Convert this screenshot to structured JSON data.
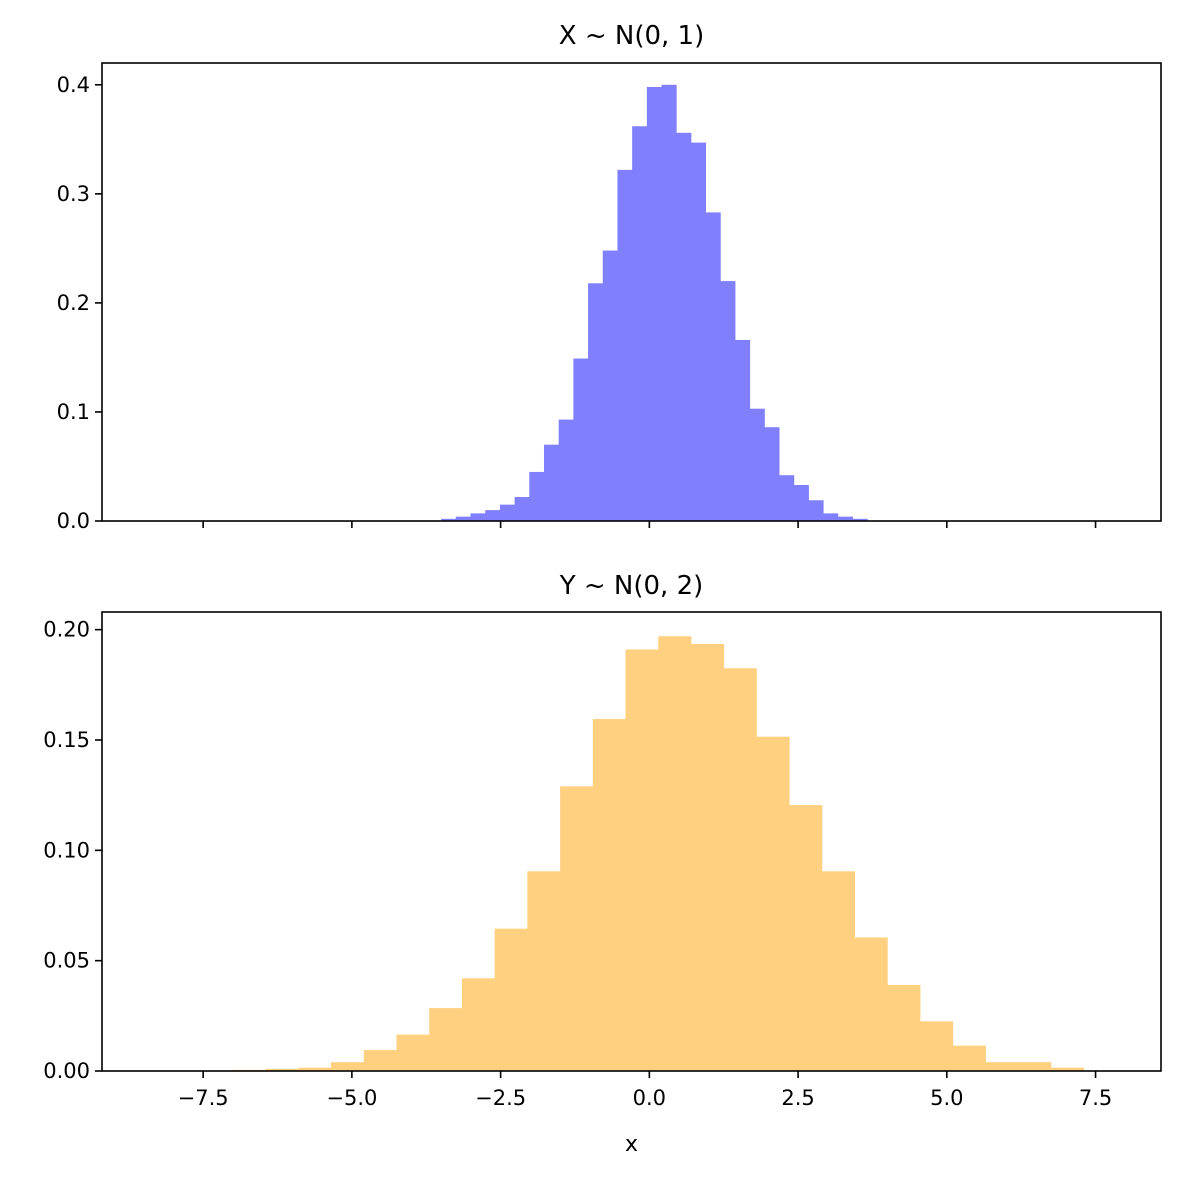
{
  "chart_data": [
    {
      "type": "bar",
      "title": "X ~ N(0, 1)",
      "xlabel": "",
      "ylabel": "",
      "color": "#8080ff",
      "xlim": [
        -9.2,
        8.6
      ],
      "ylim": [
        0,
        0.42
      ],
      "yticks": [
        0.0,
        0.1,
        0.2,
        0.3,
        0.4
      ],
      "ytick_labels": [
        "0.0",
        "0.1",
        "0.2",
        "0.3",
        "0.4"
      ],
      "xticks": [
        -7.5,
        -5.0,
        -2.5,
        0.0,
        2.5,
        5.0,
        7.5
      ],
      "xtick_labels": [],
      "bin_start": -3.5,
      "bin_width": 0.247,
      "values": [
        0.002,
        0.004,
        0.007,
        0.01,
        0.015,
        0.022,
        0.045,
        0.07,
        0.093,
        0.149,
        0.218,
        0.248,
        0.322,
        0.362,
        0.398,
        0.4,
        0.356,
        0.347,
        0.283,
        0.22,
        0.166,
        0.103,
        0.086,
        0.042,
        0.033,
        0.019,
        0.007,
        0.004,
        0.002
      ]
    },
    {
      "type": "bar",
      "title": "Y ~ N(0, 2)",
      "xlabel": "x",
      "ylabel": "",
      "color": "#fed080",
      "xlim": [
        -9.2,
        8.6
      ],
      "ylim": [
        0,
        0.208
      ],
      "yticks": [
        0.0,
        0.05,
        0.1,
        0.15,
        0.2
      ],
      "ytick_labels": [
        "0.00",
        "0.05",
        "0.10",
        "0.15",
        "0.20"
      ],
      "xticks": [
        -7.5,
        -5.0,
        -2.5,
        0.0,
        2.5,
        5.0,
        7.5
      ],
      "xtick_labels": [
        "−7.5",
        "−5.0",
        "−2.5",
        "0.0",
        "2.5",
        "5.0",
        "7.5"
      ],
      "bin_start": -7.0,
      "bin_width": 0.55,
      "values": [
        0.0005,
        0.001,
        0.0015,
        0.004,
        0.0095,
        0.0165,
        0.0285,
        0.042,
        0.0645,
        0.0905,
        0.129,
        0.1595,
        0.191,
        0.197,
        0.1935,
        0.1825,
        0.1515,
        0.1205,
        0.0905,
        0.0605,
        0.039,
        0.0225,
        0.0115,
        0.004,
        0.004,
        0.0015
      ]
    }
  ]
}
